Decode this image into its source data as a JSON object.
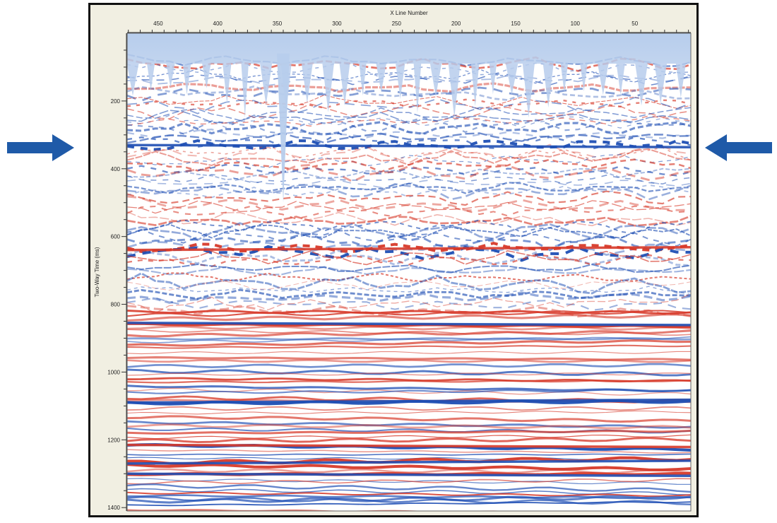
{
  "chart_data": {
    "type": "heatmap",
    "title": "",
    "xlabel": "X Line Number",
    "ylabel": "Two-Way Time (ms)",
    "x_ticks": [
      450,
      400,
      350,
      300,
      250,
      200,
      150,
      100,
      50
    ],
    "y_ticks": [
      200,
      400,
      600,
      800,
      1000,
      1200,
      1400
    ],
    "xlim": [
      476,
      3
    ],
    "ylim": [
      0,
      1410
    ],
    "x_axis_reversed": true,
    "grid": false,
    "legend": "none",
    "colors": {
      "positive_amplitude": "#1f4fb4",
      "negative_amplitude": "#d73a2a",
      "background_wash": "#b7cdec",
      "zero": "#ffffff"
    },
    "notable_reflectors_ms": [
      330,
      640,
      855,
      1090,
      1215,
      1270,
      1300
    ],
    "marker_arrows_at_ms": 330
  },
  "arrows": {
    "left_icon": "arrow-right-icon",
    "right_icon": "arrow-left-icon",
    "color": "#1f5aa8"
  }
}
